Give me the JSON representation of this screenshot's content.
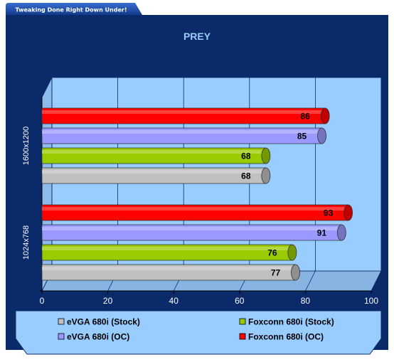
{
  "banner": {
    "text": "Tweaking Done Right Down Under!"
  },
  "chart_data": {
    "type": "bar",
    "orientation": "horizontal",
    "title": "PREY",
    "xlabel": "",
    "ylabel": "",
    "xlim": [
      0,
      100
    ],
    "xticks": [
      0,
      20,
      40,
      60,
      80,
      100
    ],
    "grid": true,
    "legend_position": "bottom",
    "categories": [
      "1600x1200",
      "1024x768"
    ],
    "series": [
      {
        "name": "eVGA 680i (Stock)",
        "color": "#c0c0c0",
        "values": [
          68,
          77
        ]
      },
      {
        "name": "Foxconn 680i (Stock)",
        "color": "#99cc00",
        "values": [
          68,
          76
        ]
      },
      {
        "name": "eVGA 680i (OC)",
        "color": "#9999ff",
        "values": [
          85,
          91
        ]
      },
      {
        "name": "Foxconn 680i (OC)",
        "color": "#ff0000",
        "values": [
          86,
          93
        ]
      }
    ],
    "legend_order": [
      0,
      1,
      2,
      3
    ]
  },
  "colors": {
    "background": "#0b2a6a",
    "plot_wall": "#99ccff",
    "title": "#99ccff",
    "axis_text": "#ffffff",
    "legend_box": "#99ccff"
  }
}
